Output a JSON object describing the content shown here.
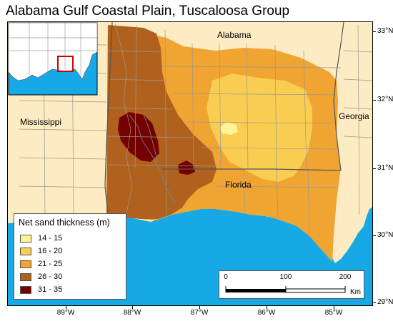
{
  "title": "Alabama Gulf Coastal Plain, Tuscaloosa Group",
  "map": {
    "state_labels": {
      "alabama": "Alabama",
      "mississippi": "Mississippi",
      "georgia": "Georgia",
      "florida": "Florida"
    },
    "latitude_labels": [
      "33°N",
      "32°N",
      "31°N",
      "30°N",
      "29°N"
    ],
    "longitude_labels": [
      "89°W",
      "88°W",
      "87°W",
      "86°W",
      "85°W"
    ],
    "colors": {
      "land": "#fcebc3",
      "water": "#17a9e6",
      "county_lines": "#9a9a8c",
      "state_lines": "#555555"
    }
  },
  "legend": {
    "title": "Net sand thickness (m)",
    "classes": [
      {
        "label": "14 - 15",
        "color": "#fcf596"
      },
      {
        "label": "16 - 20",
        "color": "#f9cd52"
      },
      {
        "label": "21 - 25",
        "color": "#f0a432"
      },
      {
        "label": "26 - 30",
        "color": "#b0611d"
      },
      {
        "label": "31 - 35",
        "color": "#750000"
      }
    ]
  },
  "scale_bar": {
    "ticks": [
      "0",
      "100",
      "200"
    ],
    "unit": "Km"
  },
  "inset": {
    "highlight_color": "#d20000"
  }
}
